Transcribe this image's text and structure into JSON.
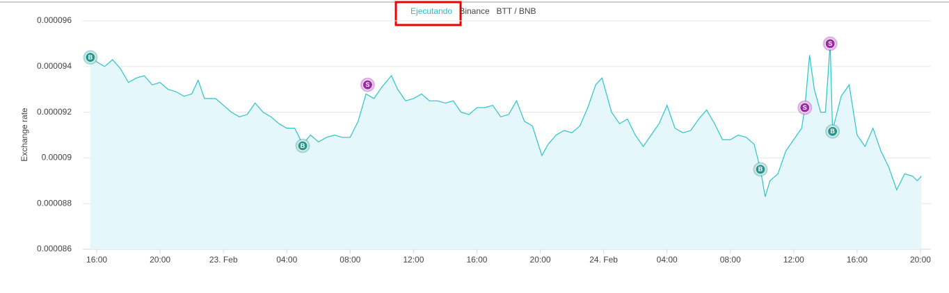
{
  "header": {
    "status": "Ejecutando",
    "exchange": "Binance",
    "pair": "BTT / BNB"
  },
  "chart_data": {
    "type": "area",
    "ylabel": "Exchange rate",
    "color": "#2bc4c8",
    "fill": "#e5f7fa",
    "grid": true,
    "xlim": [
      15.12,
      68.66
    ],
    "ylim": [
      8.6e-05,
      9.6e-05
    ],
    "yticks": [
      8.6e-05,
      8.8e-05,
      9e-05,
      9.2e-05,
      9.4e-05,
      9.6e-05
    ],
    "xticks": [
      {
        "value": 16,
        "label": "16:00"
      },
      {
        "value": 20,
        "label": "20:00"
      },
      {
        "value": 24,
        "label": "23. Feb"
      },
      {
        "value": 28,
        "label": "04:00"
      },
      {
        "value": 32,
        "label": "08:00"
      },
      {
        "value": 36,
        "label": "12:00"
      },
      {
        "value": 40,
        "label": "16:00"
      },
      {
        "value": 44,
        "label": "20:00"
      },
      {
        "value": 48,
        "label": "24. Feb"
      },
      {
        "value": 52,
        "label": "04:00"
      },
      {
        "value": 56,
        "label": "08:00"
      },
      {
        "value": 60,
        "label": "12:00"
      },
      {
        "value": 64,
        "label": "16:00"
      },
      {
        "value": 68,
        "label": "20:00"
      }
    ],
    "x": [
      15.6,
      16,
      16.5,
      17,
      17.5,
      18,
      18.5,
      19,
      19.5,
      20,
      20.5,
      21,
      21.5,
      22,
      22.4,
      22.8,
      23.5,
      24,
      24.5,
      25,
      25.5,
      26,
      26.5,
      27,
      27.5,
      28,
      28.5,
      29,
      29.5,
      30,
      30.5,
      31,
      31.5,
      32,
      32.5,
      33,
      33.5,
      34,
      34.6,
      35,
      35.5,
      36,
      36.5,
      37,
      37.5,
      38,
      38.5,
      39,
      39.5,
      40,
      40.5,
      41,
      41.5,
      42,
      42.5,
      43,
      43.5,
      44.1,
      44.5,
      45,
      45.5,
      46,
      46.5,
      47,
      47.5,
      47.9,
      48.5,
      49,
      49.5,
      50,
      50.5,
      51,
      51.5,
      52,
      52.5,
      53,
      53.5,
      54,
      54.5,
      55,
      55.5,
      56,
      56.5,
      57,
      57.5,
      57.9,
      58.2,
      58.5,
      59,
      59.5,
      60,
      60.5,
      60.7,
      61,
      61.3,
      61.7,
      62,
      62.3,
      62.45,
      63,
      63.5,
      64,
      64.5,
      65,
      65.5,
      66,
      66.5,
      67,
      67.5,
      67.8,
      68.06
    ],
    "values": [
      9.46e-05,
      9.42e-05,
      9.4e-05,
      9.43e-05,
      9.39e-05,
      9.33e-05,
      9.35e-05,
      9.36e-05,
      9.32e-05,
      9.33e-05,
      9.3e-05,
      9.29e-05,
      9.27e-05,
      9.28e-05,
      9.34e-05,
      9.26e-05,
      9.26e-05,
      9.23e-05,
      9.2e-05,
      9.18e-05,
      9.19e-05,
      9.24e-05,
      9.2e-05,
      9.18e-05,
      9.15e-05,
      9.13e-05,
      9.13e-05,
      9.06e-05,
      9.1e-05,
      9.07e-05,
      9.09e-05,
      9.1e-05,
      9.09e-05,
      9.09e-05,
      9.16e-05,
      9.28e-05,
      9.26e-05,
      9.31e-05,
      9.36e-05,
      9.3e-05,
      9.25e-05,
      9.26e-05,
      9.28e-05,
      9.25e-05,
      9.25e-05,
      9.24e-05,
      9.25e-05,
      9.2e-05,
      9.19e-05,
      9.22e-05,
      9.22e-05,
      9.23e-05,
      9.18e-05,
      9.19e-05,
      9.25e-05,
      9.16e-05,
      9.14e-05,
      9.01e-05,
      9.06e-05,
      9.1e-05,
      9.12e-05,
      9.11e-05,
      9.14e-05,
      9.22e-05,
      9.32e-05,
      9.35e-05,
      9.2e-05,
      9.15e-05,
      9.17e-05,
      9.1e-05,
      9.05e-05,
      9.1e-05,
      9.15e-05,
      9.23e-05,
      9.13e-05,
      9.11e-05,
      9.12e-05,
      9.17e-05,
      9.21e-05,
      9.15e-05,
      9.08e-05,
      9.08e-05,
      9.1e-05,
      9.09e-05,
      9.06e-05,
      8.95e-05,
      8.83e-05,
      8.9e-05,
      8.93e-05,
      9.03e-05,
      9.08e-05,
      9.13e-05,
      9.22e-05,
      9.45e-05,
      9.3e-05,
      9.2e-05,
      9.2e-05,
      9.5e-05,
      9.12e-05,
      9.27e-05,
      9.32e-05,
      9.1e-05,
      9.05e-05,
      9.13e-05,
      9.03e-05,
      8.96e-05,
      8.86e-05,
      8.93e-05,
      8.92e-05,
      8.9e-05,
      8.92e-05
    ],
    "markers": [
      {
        "label": "B",
        "x": 15.6,
        "value": 9.44e-05,
        "color": "#26968c"
      },
      {
        "label": "B",
        "x": 29,
        "value": 9.053e-05,
        "color": "#26968c"
      },
      {
        "label": "S",
        "x": 33.1,
        "value": 9.32e-05,
        "color": "#9c27a8"
      },
      {
        "label": "B",
        "x": 57.9,
        "value": 8.95e-05,
        "color": "#26968c"
      },
      {
        "label": "S",
        "x": 60.7,
        "value": 9.22e-05,
        "color": "#9c27a8"
      },
      {
        "label": "S",
        "x": 62.3,
        "value": 9.5e-05,
        "color": "#9c27a8"
      },
      {
        "label": "B",
        "x": 62.45,
        "value": 9.116e-05,
        "color": "#26968c"
      }
    ]
  }
}
